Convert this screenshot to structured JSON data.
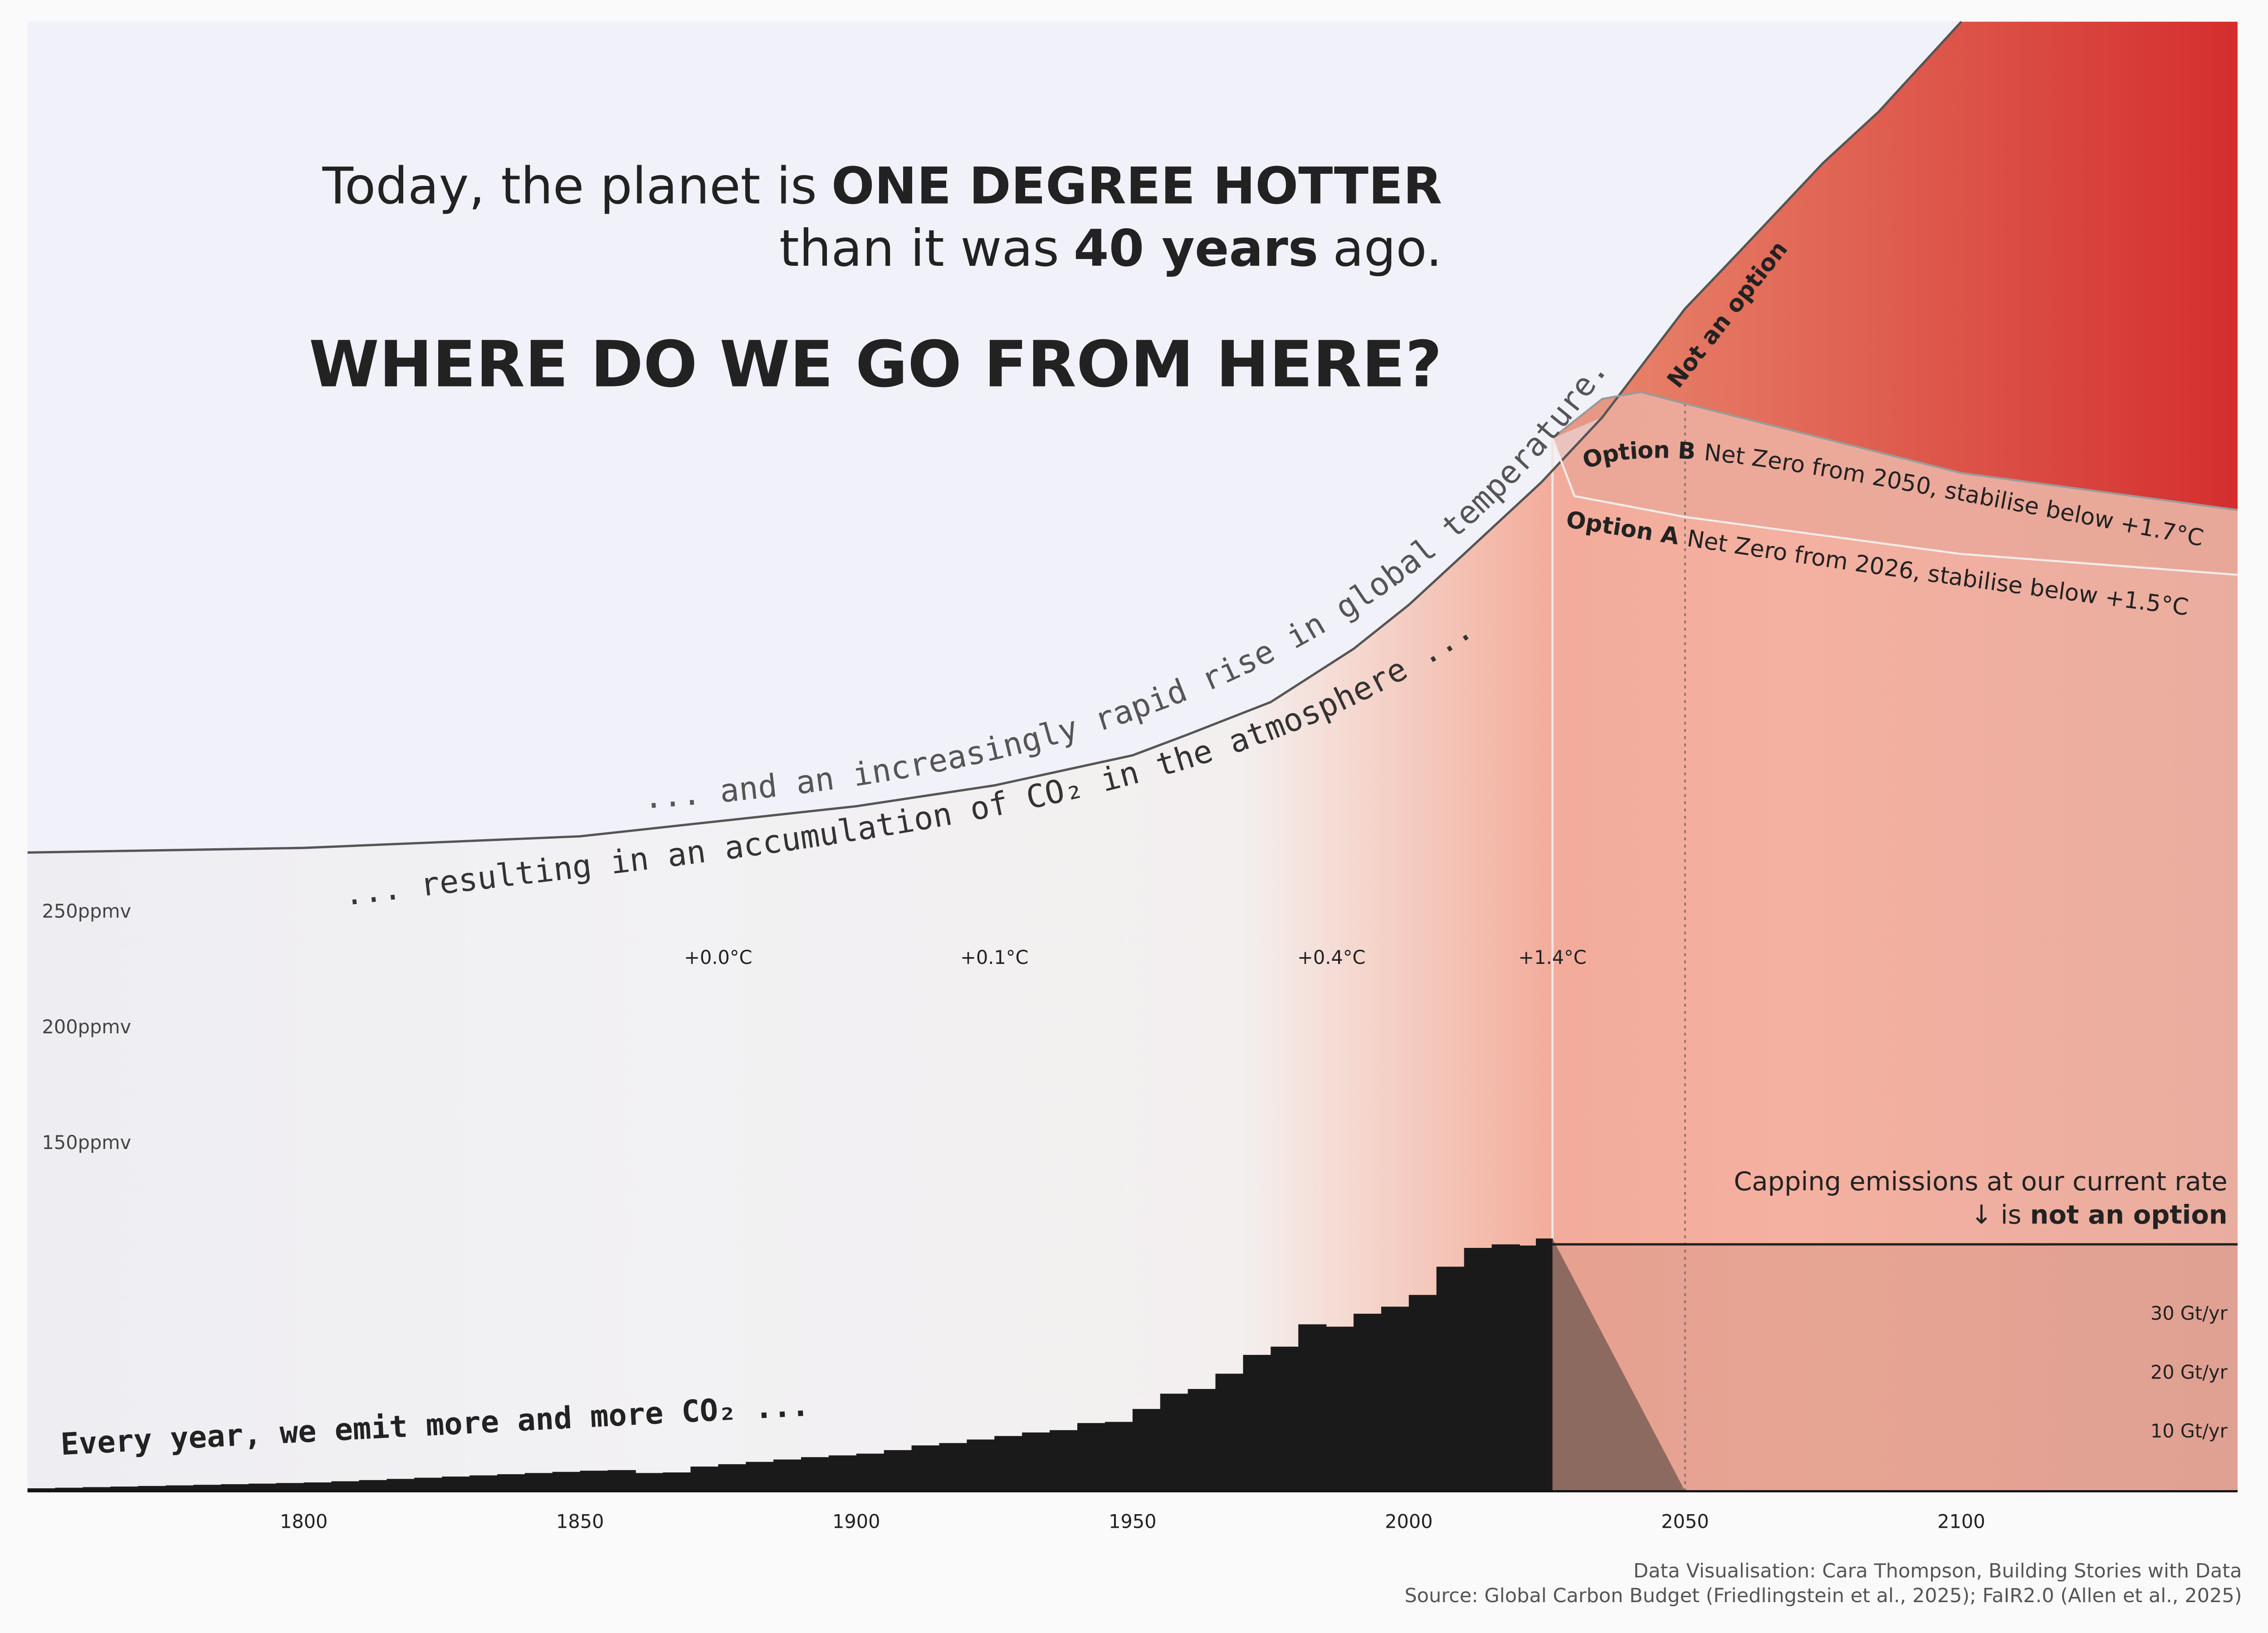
{
  "chart_data": {
    "type": "area",
    "title": {
      "line1": [
        "Today, the planet is",
        "ONE DEGREE HOTTER"
      ],
      "line2": [
        "than it was",
        "40 years",
        "ago."
      ],
      "headline": "WHERE DO WE GO FROM HERE?"
    },
    "annotations": {
      "temperature": "... and an increasingly rapid rise in global temperature.",
      "co2": "... resulting in an accumulation of CO₂ in the atmosphere ...",
      "emissions": "Every year, we emit more and more CO₂ ...",
      "cap_line1": "Capping emissions at our current rate",
      "cap_line2": [
        "↓ is",
        "not an option"
      ]
    },
    "credits": [
      "Data Visualisation: Cara Thompson, Building Stories with Data",
      "Source: Global Carbon Budget (Friedlingstein et al., 2025); FaIR2.0 (Allen et al., 2025)"
    ],
    "xlim": [
      1750,
      2150
    ],
    "xticks": [
      1800,
      1850,
      1900,
      1950,
      2000,
      2050,
      2100
    ],
    "ylim": [
      0,
      635
    ],
    "yticks": [
      {
        "value": 250,
        "label": "250ppmv"
      },
      {
        "value": 200,
        "label": "200ppmv"
      },
      {
        "value": 150,
        "label": "150ppmv"
      }
    ],
    "y2lim": [
      0,
      250
    ],
    "y2ticks": [
      {
        "value": 30,
        "label": "30 Gt/yr"
      },
      {
        "value": 20,
        "label": "20 Gt/yr"
      },
      {
        "value": 10,
        "label": "10 Gt/yr"
      }
    ],
    "temperature_markers": {
      "x": [
        1875,
        1925,
        1986,
        2026
      ],
      "labels": [
        "+0.0°C",
        "+0.1°C",
        "+0.4°C",
        "+1.4°C"
      ]
    },
    "reference_lines": [
      2026,
      2050
    ],
    "co2": {
      "color": "#555555",
      "x": [
        1750,
        1800,
        1850,
        1900,
        1925,
        1950,
        1960,
        1975,
        1990,
        2000,
        2010,
        2024
      ],
      "values": [
        276,
        278,
        283,
        296,
        305,
        318,
        327,
        341,
        364,
        383,
        405,
        436
      ]
    },
    "not_an_option": {
      "name": "Not an option",
      "color": "#555555",
      "x": [
        2024,
        2035,
        2050,
        2060,
        2075,
        2085,
        2100
      ],
      "values": [
        436,
        464,
        511,
        536,
        574,
        596,
        635
      ]
    },
    "options": [
      {
        "name": "Option B",
        "description": "Net Zero from 2050, stabilise below +1.7°C",
        "color": "#9a9a9a",
        "x": [
          2026,
          2035,
          2042,
          2050,
          2075,
          2100,
          2150
        ],
        "values": [
          455,
          472,
          475,
          470,
          455,
          440,
          424
        ]
      },
      {
        "name": "Option A",
        "description": "Net Zero from 2026, stabilise below +1.5°C",
        "color": "#f4ece9",
        "x": [
          2026,
          2030,
          2050,
          2075,
          2100,
          2150
        ],
        "values": [
          455,
          430,
          421,
          413,
          405,
          396
        ]
      }
    ],
    "emissions": {
      "axis": "y2",
      "color": "#1a1a1a",
      "x": [
        1750,
        1755,
        1760,
        1765,
        1770,
        1775,
        1780,
        1785,
        1790,
        1795,
        1800,
        1805,
        1810,
        1815,
        1820,
        1825,
        1830,
        1835,
        1840,
        1845,
        1850,
        1855,
        1860,
        1865,
        1870,
        1875,
        1880,
        1885,
        1890,
        1895,
        1900,
        1905,
        1910,
        1915,
        1920,
        1925,
        1930,
        1935,
        1940,
        1945,
        1950,
        1955,
        1960,
        1965,
        1970,
        1975,
        1980,
        1985,
        1990,
        1995,
        2000,
        2005,
        2010,
        2015,
        2020,
        2023
      ],
      "values": [
        0.5,
        0.6,
        0.7,
        0.8,
        0.9,
        1,
        1.1,
        1.2,
        1.3,
        1.4,
        1.5,
        1.7,
        1.9,
        2.1,
        2.3,
        2.5,
        2.7,
        2.9,
        3.1,
        3.3,
        3.5,
        3.6,
        3.1,
        3.2,
        4.2,
        4.6,
        5,
        5.4,
        5.8,
        6.1,
        6.4,
        7,
        7.8,
        8.2,
        8.8,
        9.4,
        10,
        10.4,
        11.6,
        11.8,
        14,
        16.6,
        17.4,
        20,
        23.2,
        24.6,
        28.4,
        28,
        30.2,
        31.4,
        33.4,
        38.2,
        41.4,
        42,
        41.8,
        43
      ]
    },
    "emissions_decline": {
      "axis": "y2",
      "color": "#8d6a60",
      "x": [
        2026,
        2050
      ],
      "values": [
        43,
        0
      ]
    },
    "emissions_cap": {
      "axis": "y2",
      "color": "#222222",
      "x": [
        2026,
        2150
      ],
      "values": [
        42,
        42
      ]
    }
  }
}
